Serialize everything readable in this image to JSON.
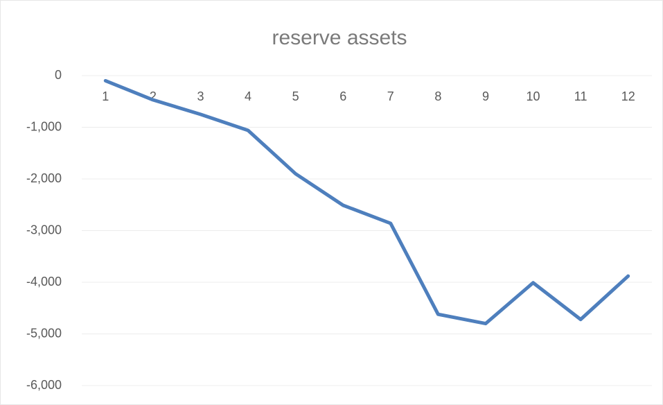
{
  "chart_data": {
    "type": "line",
    "title": "reserve assets",
    "categories": [
      "1",
      "2",
      "3",
      "4",
      "5",
      "6",
      "7",
      "8",
      "9",
      "10",
      "11",
      "12"
    ],
    "series": [
      {
        "name": "reserve assets",
        "color": "#4e7fbd",
        "values": [
          -100,
          -470,
          -750,
          -1060,
          -1900,
          -2510,
          -2860,
          -4620,
          -4800,
          -4010,
          -4720,
          -3880
        ]
      }
    ],
    "ylim": [
      -6000,
      0
    ],
    "yticks": [
      0,
      {
        "value": -1000,
        "label": "-1,000"
      },
      {
        "value": -2000,
        "label": "-2,000"
      },
      {
        "value": -3000,
        "label": "-3,000"
      },
      {
        "value": -4000,
        "label": "-4,000"
      },
      {
        "value": -5000,
        "label": "-5,000"
      },
      {
        "value": -6000,
        "label": "-6,000"
      }
    ],
    "grid": true
  }
}
